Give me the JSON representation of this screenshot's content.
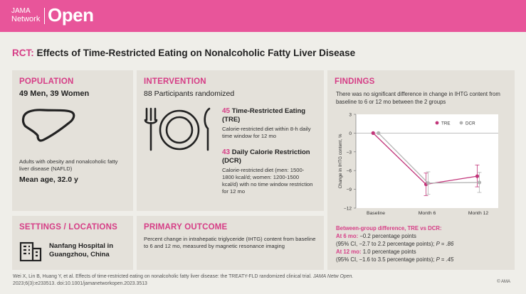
{
  "header": {
    "logo_jama": "JAMA",
    "logo_network": "Network",
    "logo_open": "Open",
    "brand_color": "#e8559a"
  },
  "title": {
    "prefix": "RCT:",
    "text": "Effects of Time-Restricted Eating on Nonalcoholic Fatty Liver Disease"
  },
  "population": {
    "label": "POPULATION",
    "counts": "49 Men, 39 Women",
    "description": "Adults with obesity and nonalcoholic fatty liver disease (NAFLD)",
    "age": "Mean age, 32.0 y",
    "icon": "liver-icon"
  },
  "intervention": {
    "label": "INTERVENTION",
    "participants": "88 Participants randomized",
    "icon": "plate-cutlery-icon",
    "tre": {
      "n": "45",
      "title": "Time-Restricted Eating (TRE)",
      "desc": "Calorie-restricted diet within 8-h daily time window for 12 mo"
    },
    "dcr": {
      "n": "43",
      "title": "Daily Calorie Restriction (DCR)",
      "desc": "Calorie-restricted diet (men: 1500-1800 kcal/d; women: 1200-1500 kcal/d) with no time window restriction for 12 mo"
    }
  },
  "settings": {
    "label": "SETTINGS / LOCATIONS",
    "location": "Nanfang Hospital in Guangzhou, China",
    "icon": "hospital-building-icon"
  },
  "primary_outcome": {
    "label": "PRIMARY OUTCOME",
    "text": "Percent change in intrahepatic triglyceride (IHTG) content from baseline to 6 and 12 mo, measured by magnetic resonance imaging"
  },
  "findings": {
    "label": "FINDINGS",
    "summary": "There was no significant difference in change in IHTG content from baseline to 6 or 12 mo between the 2 groups",
    "between_group_heading": "Between-group difference, TRE vs DCR:",
    "m6_label": "At 6 mo:",
    "m6_value": "−0.2 percentage points",
    "m6_ci": "(95% CI, −2.7 to 2.2 percentage points);",
    "m6_p": "P = .86",
    "m12_label": "At 12 mo:",
    "m12_value": "1.0 percentage points",
    "m12_ci": "(95% CI, −1.6 to 3.5 percentage points);",
    "m12_p": "P = .45"
  },
  "chart_data": {
    "type": "line",
    "categories": [
      "Baseline",
      "Month 6",
      "Month 12"
    ],
    "ylabel": "Change in IHTG content, %",
    "ylim": [
      -12,
      3
    ],
    "yticks": [
      "3",
      "0",
      "−3",
      "−6",
      "−9",
      "−12"
    ],
    "ytick_values": [
      3,
      0,
      -3,
      -6,
      -9,
      -12
    ],
    "legend_position": "top-right",
    "series": [
      {
        "name": "TRE",
        "values": [
          0,
          -8.2,
          -6.9
        ],
        "err_low": [
          0,
          -10.0,
          -8.6
        ],
        "err_high": [
          0,
          -6.4,
          -5.1
        ],
        "color": "#c2357a"
      },
      {
        "name": "DCR",
        "values": [
          0,
          -8.0,
          -7.9
        ],
        "err_low": [
          0,
          -9.8,
          -9.5
        ],
        "err_high": [
          0,
          -6.2,
          -6.3
        ],
        "color": "#b3b3b3"
      }
    ]
  },
  "footer": {
    "citation_1": "Wei X, Lin B, Huang Y, et al. Effects of time-restricted eating on nonalcoholic fatty liver disease: the TREATY-FLD randomized clinical trial. ",
    "journal": "JAMA Netw Open.",
    "citation_2": "2023;6(3):e233513. doi:10.1001/jamanetworkopen.2023.3513",
    "copyright": "© AMA"
  }
}
